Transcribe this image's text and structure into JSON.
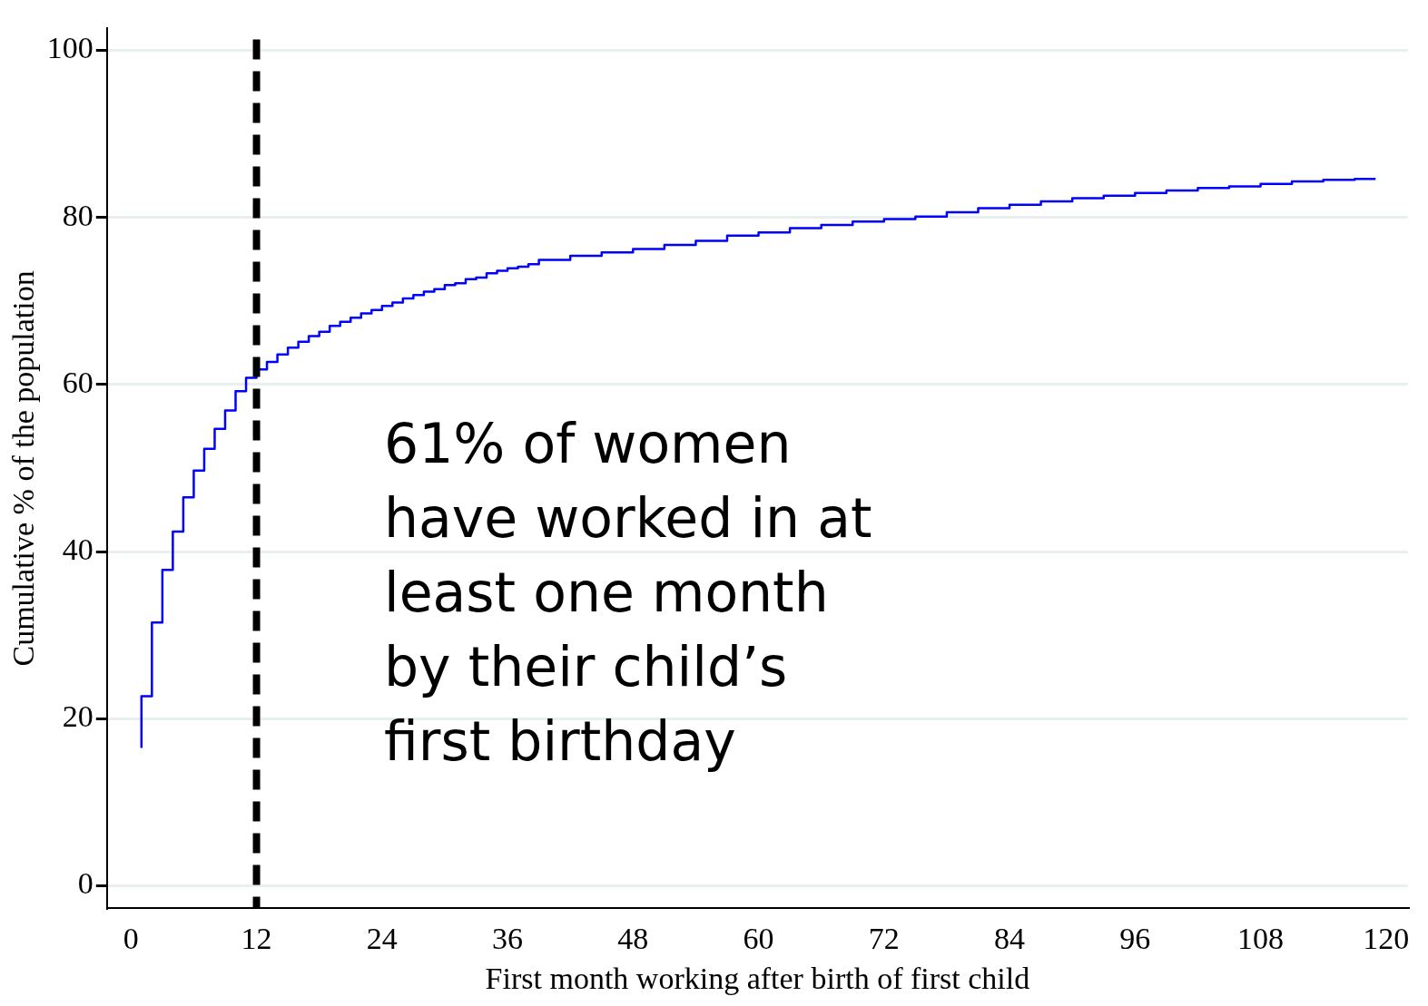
{
  "chart_data": {
    "type": "step",
    "xlabel": "First month working after birth of first child",
    "ylabel": "Cumulative % of the population",
    "x": [
      1,
      2,
      3,
      4,
      5,
      6,
      7,
      8,
      9,
      10,
      11,
      12,
      13,
      14,
      15,
      16,
      17,
      18,
      19,
      20,
      21,
      22,
      23,
      24,
      25,
      26,
      27,
      28,
      29,
      30,
      31,
      32,
      33,
      34,
      35,
      36,
      37,
      38,
      39,
      42,
      45,
      48,
      51,
      54,
      57,
      60,
      63,
      66,
      69,
      72,
      75,
      78,
      81,
      84,
      87,
      90,
      93,
      96,
      99,
      102,
      105,
      108,
      111,
      114,
      117,
      119
    ],
    "series": [
      {
        "color": "#0000ff",
        "values": [
          16.5,
          22.7,
          31.5,
          37.8,
          42.4,
          46.5,
          49.7,
          52.3,
          54.7,
          56.9,
          59.2,
          60.8,
          61.8,
          62.7,
          63.6,
          64.4,
          65.1,
          65.8,
          66.3,
          67.0,
          67.5,
          68.0,
          68.5,
          68.9,
          69.4,
          69.8,
          70.3,
          70.7,
          71.1,
          71.4,
          71.9,
          72.1,
          72.6,
          72.8,
          73.3,
          73.6,
          73.9,
          74.1,
          74.4,
          74.9,
          75.4,
          75.8,
          76.2,
          76.7,
          77.2,
          77.8,
          78.2,
          78.7,
          79.1,
          79.5,
          79.8,
          80.1,
          80.6,
          81.1,
          81.5,
          81.9,
          82.3,
          82.6,
          82.9,
          83.2,
          83.5,
          83.7,
          84.0,
          84.3,
          84.5,
          84.6
        ]
      }
    ],
    "xlim": [
      -2.3,
      122.1
    ],
    "xticks": [
      0,
      12,
      24,
      36,
      48,
      60,
      72,
      84,
      96,
      108,
      120
    ],
    "ylim": [
      -2.7,
      102.6
    ],
    "yticks": [
      0,
      20,
      40,
      60,
      80,
      100
    ],
    "grid": "y",
    "legend": false,
    "marker": "none",
    "line_style": "solid",
    "ref_lines": [
      {
        "axis": "x",
        "value": 12,
        "color": "#000000",
        "line_style": "dashed"
      }
    ],
    "annotations": [
      "61% of women have worked in at least one month by their child’s first birthday"
    ]
  }
}
